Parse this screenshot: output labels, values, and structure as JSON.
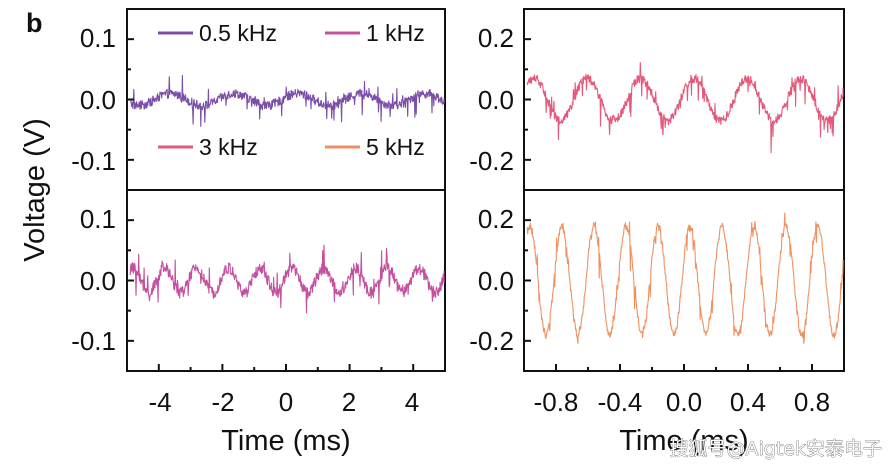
{
  "panel_label": "b",
  "watermark": "搜狐号@Aigtek安泰电子",
  "colors": {
    "0.5 kHz": "#7b4ea8",
    "1 kHz": "#c4509f",
    "3 kHz": "#e4587a",
    "5 kHz": "#ef9262"
  },
  "chart_data": [
    {
      "type": "line",
      "position": "top-left",
      "series": [
        {
          "name": "0.5 kHz",
          "frequency_khz": 0.5,
          "amplitude_v": 0.01,
          "noise_v": 0.015
        }
      ],
      "xlim": [
        -5,
        5
      ],
      "ylim": [
        -0.15,
        0.15
      ],
      "yticks": [
        -0.1,
        0.0,
        0.1
      ],
      "ytick_labels": [
        "-0.1",
        "0.0",
        "0.1"
      ],
      "ylabel": "Voltage (V)",
      "legend": [
        "0.5 kHz",
        "1 kHz"
      ]
    },
    {
      "type": "line",
      "position": "bottom-left",
      "series": [
        {
          "name": "1 kHz",
          "frequency_khz": 1,
          "amplitude_v": 0.02,
          "noise_v": 0.02
        }
      ],
      "xlim": [
        -5,
        5
      ],
      "ylim": [
        -0.15,
        0.15
      ],
      "xticks": [
        -4,
        -2,
        0,
        2,
        4
      ],
      "xtick_labels": [
        "-4",
        "-2",
        "0",
        "2",
        "4"
      ],
      "yticks": [
        -0.1,
        0.0,
        0.1
      ],
      "ytick_labels": [
        "-0.1",
        "0.0",
        "0.1"
      ],
      "xlabel": "Time (ms)"
    },
    {
      "type": "line",
      "position": "top-right",
      "series": [
        {
          "name": "3 kHz",
          "frequency_khz": 3,
          "amplitude_v": 0.07,
          "noise_v": 0.03
        }
      ],
      "xlim": [
        -1,
        1
      ],
      "ylim": [
        -0.3,
        0.3
      ],
      "yticks": [
        -0.2,
        0.0,
        0.2
      ],
      "ytick_labels": [
        "-0.2",
        "0.0",
        "0.2"
      ],
      "legend": [
        "3 kHz",
        "5 kHz"
      ]
    },
    {
      "type": "line",
      "position": "bottom-right",
      "series": [
        {
          "name": "5 kHz",
          "frequency_khz": 5,
          "amplitude_v": 0.18,
          "noise_v": 0.025
        }
      ],
      "xlim": [
        -1,
        1
      ],
      "ylim": [
        -0.3,
        0.3
      ],
      "xticks": [
        -0.8,
        -0.4,
        0.0,
        0.4,
        0.8
      ],
      "xtick_labels": [
        "-0.8",
        "-0.4",
        "0.0",
        "0.4",
        "0.8"
      ],
      "yticks": [
        -0.2,
        0.0,
        0.2
      ],
      "ytick_labels": [
        "-0.2",
        "0.0",
        "0.2"
      ],
      "xlabel": "Time (ms)"
    }
  ]
}
